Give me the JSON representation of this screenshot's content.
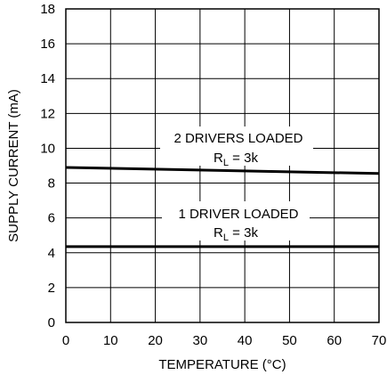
{
  "chart_data": {
    "type": "line",
    "title": "",
    "xlabel": "TEMPERATURE (°C)",
    "ylabel": "SUPPLY CURRENT (mA)",
    "xlim": [
      0,
      70
    ],
    "ylim": [
      0,
      18
    ],
    "x_ticks": [
      0,
      10,
      20,
      30,
      40,
      50,
      60,
      70
    ],
    "y_ticks": [
      0,
      2,
      4,
      6,
      8,
      10,
      12,
      14,
      16,
      18
    ],
    "grid": true,
    "series": [
      {
        "x": [
          0,
          70
        ],
        "values": [
          8.9,
          8.55
        ]
      },
      {
        "x": [
          0,
          70
        ],
        "values": [
          4.35,
          4.35
        ]
      }
    ],
    "annotations": [
      {
        "line1": "2 DRIVERS LOADED",
        "line2_main": "R",
        "line2_sub": "L",
        "line2_rest": " = 3k"
      },
      {
        "line1": "1 DRIVER LOADED",
        "line2_main": "R",
        "line2_sub": "L",
        "line2_rest": " = 3k"
      }
    ]
  },
  "colors": {
    "line": "#000000",
    "grid": "#000000",
    "background": "#ffffff"
  }
}
